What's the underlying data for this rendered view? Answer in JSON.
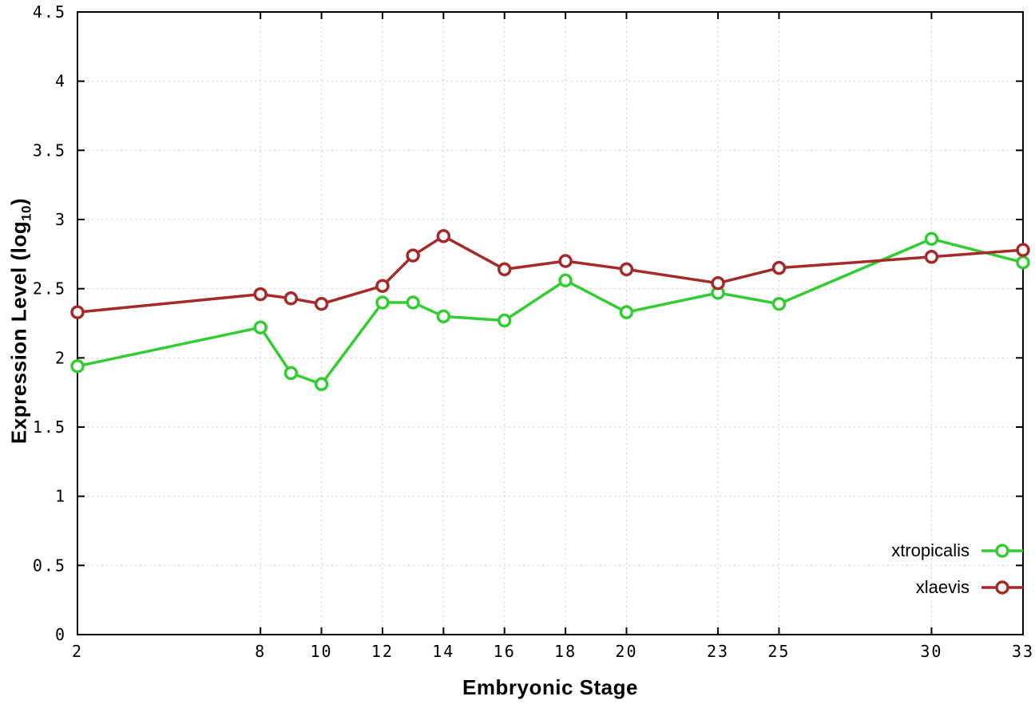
{
  "chart_data": {
    "type": "line",
    "title": "",
    "xlabel": "Embryonic Stage",
    "ylabel": "Expression Level (log10)",
    "ylabel_main": "Expression Level (log",
    "ylabel_sub": "10",
    "ylabel_end": ")",
    "xlim": [
      2,
      33
    ],
    "ylim": [
      0,
      4.5
    ],
    "xticks": [
      2,
      8,
      10,
      12,
      14,
      16,
      18,
      20,
      23,
      25,
      30,
      33
    ],
    "xtick_labels": [
      "2",
      "8",
      "10",
      "12",
      "14",
      "16",
      "18",
      "20",
      "23",
      "25",
      "30",
      "33"
    ],
    "yticks": [
      0,
      0.5,
      1,
      1.5,
      2,
      2.5,
      3,
      3.5,
      4,
      4.5
    ],
    "ytick_labels": [
      "0",
      "0.5",
      "1",
      "1.5",
      "2",
      "2.5",
      "3",
      "3.5",
      "4",
      "4.5"
    ],
    "grid": true,
    "grid_color": "#cccccc",
    "axis_color": "#000000",
    "background_color": "#ffffff",
    "legend_position": "bottom-right",
    "x": [
      2,
      8,
      9,
      10,
      12,
      13,
      14,
      16,
      18,
      20,
      23,
      25,
      30,
      33
    ],
    "series": [
      {
        "name": "xtropicalis",
        "color": "#33cc33",
        "marker": "open-circle",
        "values": [
          1.94,
          2.22,
          1.89,
          1.81,
          2.4,
          2.4,
          2.3,
          2.27,
          2.56,
          2.33,
          2.47,
          2.39,
          2.86,
          2.69
        ]
      },
      {
        "name": "xlaevis",
        "color": "#a52a2a",
        "marker": "open-circle",
        "values": [
          2.33,
          2.46,
          2.43,
          2.39,
          2.52,
          2.74,
          2.88,
          2.64,
          2.7,
          2.64,
          2.54,
          2.65,
          2.73,
          2.78
        ]
      }
    ]
  }
}
